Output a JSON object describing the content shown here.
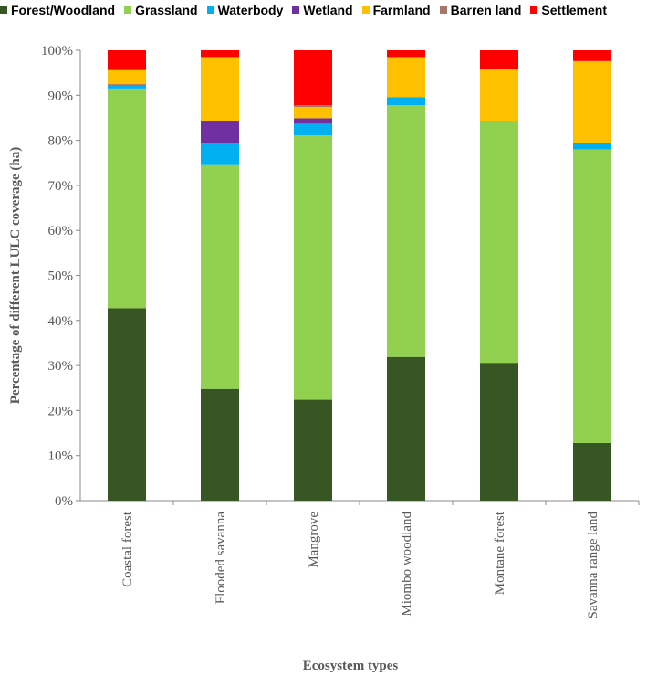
{
  "chart_data": {
    "type": "bar",
    "stacked": true,
    "title": "",
    "xlabel": "Ecosystem types",
    "ylabel": "Percentage of different LULC coverage (ha)",
    "ylim": [
      0,
      100
    ],
    "y_ticks": [
      "0%",
      "10%",
      "20%",
      "30%",
      "40%",
      "50%",
      "60%",
      "70%",
      "80%",
      "90%",
      "100%"
    ],
    "grid": false,
    "legend_position": "top",
    "categories": [
      "Coastal forest",
      "Flooded savanna",
      "Mangrove",
      "Miombo  woodland",
      "Montane forest",
      "Savanna range land"
    ],
    "series": [
      {
        "name": "Forest/Woodland",
        "color": "#375623",
        "values": [
          42.7,
          24.8,
          22.4,
          31.9,
          30.6,
          12.8
        ]
      },
      {
        "name": "Grassland",
        "color": "#92d050",
        "values": [
          48.8,
          49.7,
          58.7,
          55.9,
          53.6,
          65.2
        ]
      },
      {
        "name": "Waterbody",
        "color": "#00b0f0",
        "values": [
          0.8,
          4.8,
          2.6,
          1.7,
          0.0,
          1.5
        ]
      },
      {
        "name": "Wetland",
        "color": "#7030a0",
        "values": [
          0.1,
          4.9,
          1.2,
          0.1,
          0.0,
          0.0
        ]
      },
      {
        "name": "Farmland",
        "color": "#ffc000",
        "values": [
          3.2,
          14.3,
          2.5,
          8.9,
          11.6,
          18.1
        ]
      },
      {
        "name": "Barren land",
        "color": "#a5776a",
        "values": [
          0.0,
          0.0,
          0.4,
          0.0,
          0.0,
          0.0
        ]
      },
      {
        "name": "Settlement",
        "color": "#ff0000",
        "values": [
          4.4,
          1.5,
          12.2,
          1.5,
          4.2,
          2.4
        ]
      }
    ]
  }
}
